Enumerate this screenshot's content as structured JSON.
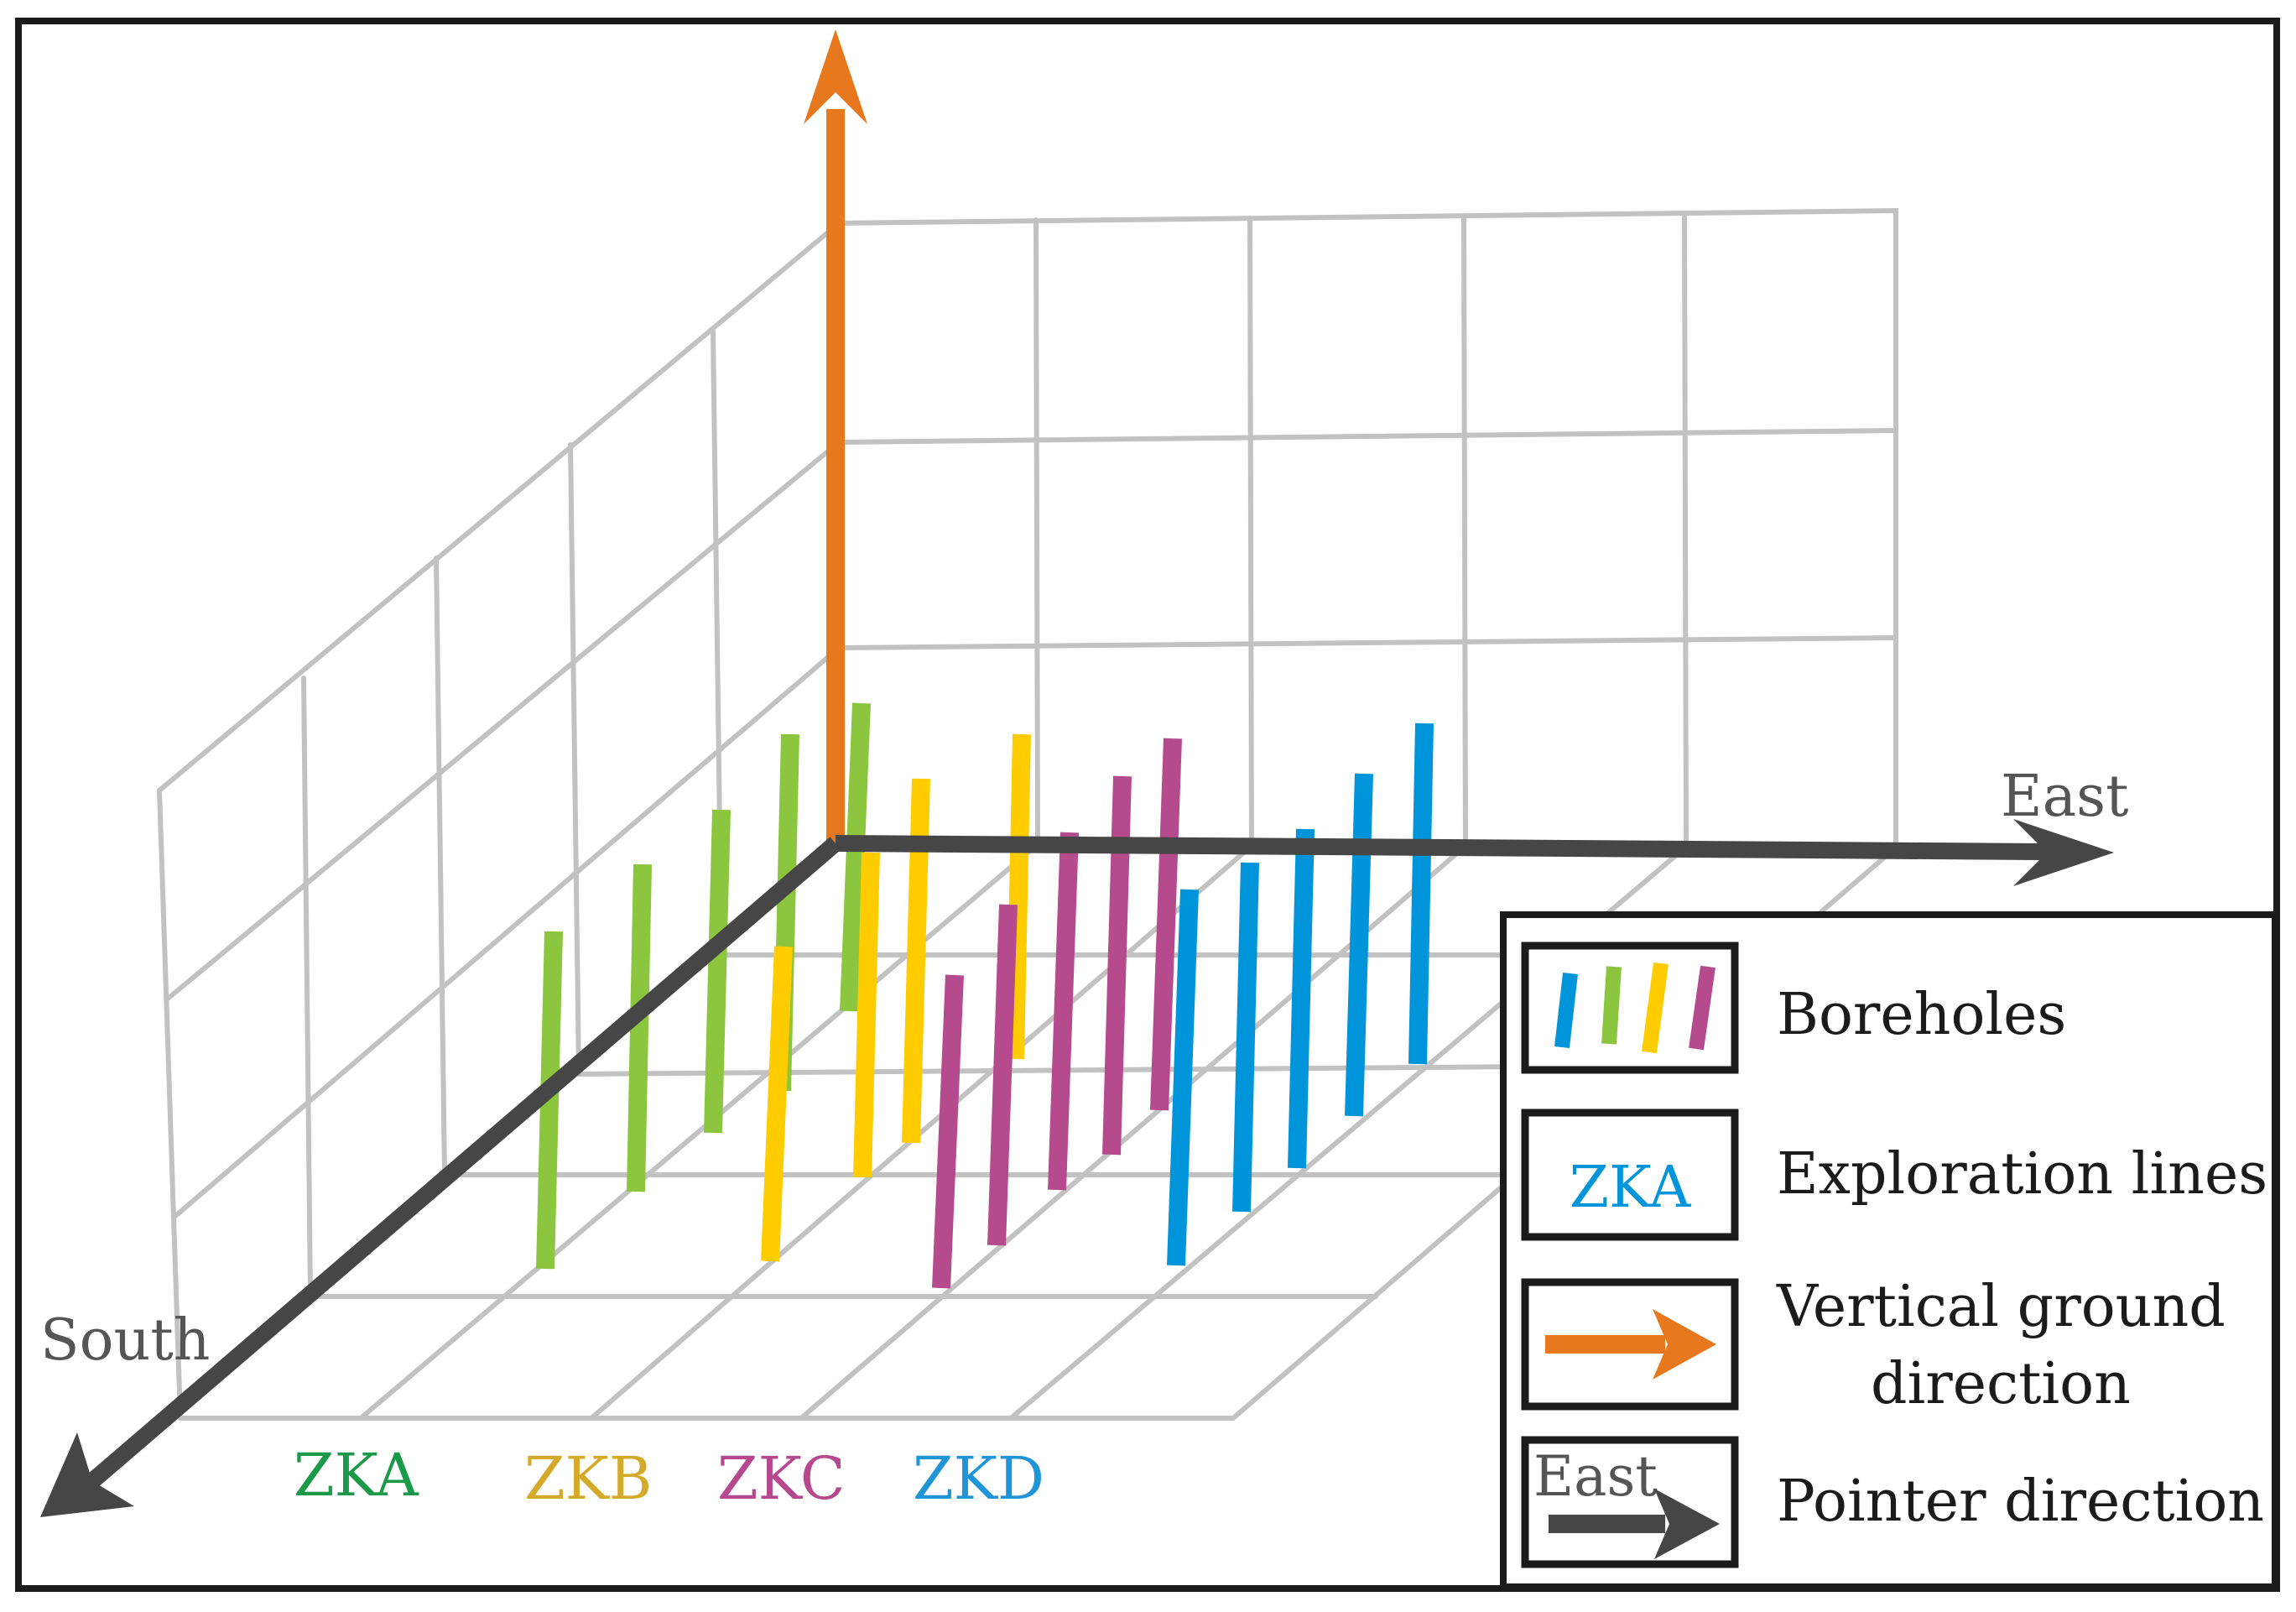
{
  "axes": {
    "south_label": "South",
    "east_label": "East"
  },
  "exploration_lines": [
    {
      "label": "ZKA",
      "color": "#1a9a48"
    },
    {
      "label": "ZKB",
      "color": "#d4aa2a"
    },
    {
      "label": "ZKC",
      "color": "#b6488e"
    },
    {
      "label": "ZKD",
      "color": "#1f95d8"
    }
  ],
  "borehole_colors": {
    "ZKA": "#8cc63f",
    "ZKB": "#ffcc00",
    "ZKC": "#b54b8c",
    "ZKD": "#0095da"
  },
  "legend": {
    "boreholes_label": "Boreholes",
    "exploration_lines_label": "Exploration lines",
    "exploration_sample": "ZKA",
    "vertical_label_line1": "Vertical ground",
    "vertical_label_line2": "direction",
    "east_sample": "East",
    "pointer_label": "Pointer direction"
  },
  "colors": {
    "vertical_arrow": "#e8781e",
    "axis_arrow": "#464646",
    "grid": "#c2c2c2",
    "axis_text": "#555555"
  }
}
